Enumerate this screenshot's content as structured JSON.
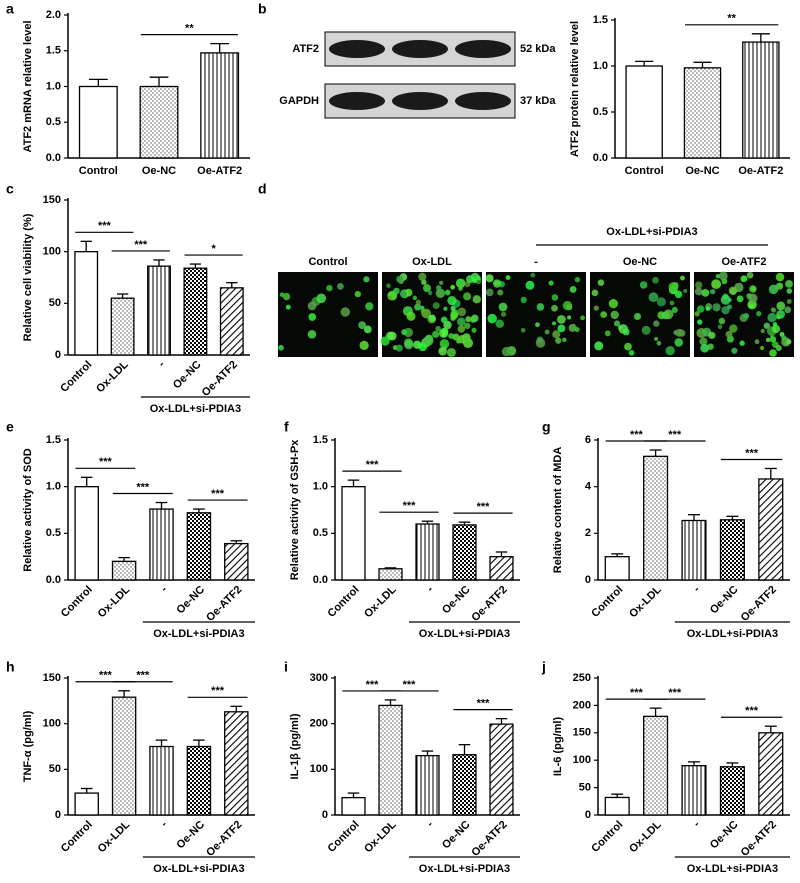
{
  "chart_data": [
    {
      "type": "bar",
      "label": "a",
      "ylabel": "ATF2 mRNA relative level",
      "categories": [
        "Control",
        "Oe-NC",
        "Oe-ATF2"
      ],
      "values": [
        1.0,
        1.0,
        1.47
      ],
      "errors": [
        0.1,
        0.13,
        0.13
      ],
      "patterns": [
        "none",
        "dots",
        "vertical"
      ],
      "ylim": [
        0,
        2.0
      ],
      "yticks": [
        {
          "value": 0,
          "label": "0.0"
        },
        {
          "value": 0.5,
          "label": "0.5"
        },
        {
          "value": 1.0,
          "label": "1.0"
        },
        {
          "value": 1.5,
          "label": "1.5"
        },
        {
          "value": 2.0,
          "label": "2.0"
        }
      ],
      "annotations": [
        {
          "between": [
            "Oe-NC",
            "Oe-ATF2"
          ],
          "label": "**"
        }
      ]
    },
    {
      "type": "bar",
      "label": "b",
      "blot": {
        "bands": [
          "ATF2",
          "GAPDH"
        ],
        "sizes": [
          "52 kDa",
          "37 kDa"
        ]
      },
      "ylabel": "ATF2 protein relative level",
      "categories": [
        "Control",
        "Oe-NC",
        "Oe-ATF2"
      ],
      "values": [
        1.0,
        0.98,
        1.26
      ],
      "errors": [
        0.05,
        0.06,
        0.09
      ],
      "patterns": [
        "none",
        "dots",
        "vertical"
      ],
      "ylim": [
        0,
        1.5
      ],
      "yticks": [
        {
          "value": 0,
          "label": "0.0"
        },
        {
          "value": 0.5,
          "label": "0.5"
        },
        {
          "value": 1.0,
          "label": "1.0"
        },
        {
          "value": 1.5,
          "label": "1.5"
        }
      ],
      "annotations": [
        {
          "between": [
            "Oe-NC",
            "Oe-ATF2"
          ],
          "label": "**"
        }
      ]
    },
    {
      "type": "bar",
      "label": "c",
      "ylabel": "Relative cell viability (%)",
      "categories": [
        "Control",
        "Ox-LDL",
        "-",
        "Oe-NC",
        "Oe-ATF2"
      ],
      "group_label": "Ox-LDL+si-PDIA3",
      "values": [
        100,
        55,
        86,
        84,
        65
      ],
      "errors": [
        10,
        4,
        6,
        4,
        5
      ],
      "patterns": [
        "none",
        "dots",
        "vertical",
        "checker",
        "diagonal"
      ],
      "ylim": [
        0,
        150
      ],
      "yticks": [
        0,
        50,
        100,
        150
      ],
      "annotations": [
        {
          "between": [
            "Control",
            "Ox-LDL"
          ],
          "label": "***"
        },
        {
          "between": [
            "Ox-LDL",
            "-"
          ],
          "label": "***"
        },
        {
          "between": [
            "Oe-NC",
            "Oe-ATF2"
          ],
          "label": "*"
        }
      ]
    },
    {
      "type": "image",
      "label": "d",
      "columns": [
        "Control",
        "Ox-LDL",
        "-",
        "Oe-NC",
        "Oe-ATF2"
      ],
      "group_label": "Ox-LDL+si-PDIA3"
    },
    {
      "type": "bar",
      "label": "e",
      "ylabel": "Relative activity of SOD",
      "categories": [
        "Control",
        "Ox-LDL",
        "-",
        "Oe-NC",
        "Oe-ATF2"
      ],
      "group_label": "Ox-LDL+si-PDIA3",
      "values": [
        1.0,
        0.2,
        0.76,
        0.72,
        0.39
      ],
      "errors": [
        0.1,
        0.04,
        0.07,
        0.04,
        0.03
      ],
      "patterns": [
        "none",
        "dots",
        "vertical",
        "checker",
        "diagonal"
      ],
      "ylim": [
        0,
        1.5
      ],
      "yticks": [
        {
          "value": 0,
          "label": "0.0"
        },
        {
          "value": 0.5,
          "label": "0.5"
        },
        {
          "value": 1.0,
          "label": "1.0"
        },
        {
          "value": 1.5,
          "label": "1.5"
        }
      ],
      "annotations": [
        {
          "between": [
            "Control",
            "Ox-LDL"
          ],
          "label": "***"
        },
        {
          "between": [
            "Ox-LDL",
            "-"
          ],
          "label": "***"
        },
        {
          "between": [
            "Oe-NC",
            "Oe-ATF2"
          ],
          "label": "***"
        }
      ]
    },
    {
      "type": "bar",
      "label": "f",
      "ylabel": "Relative activity of GSH-Px",
      "categories": [
        "Control",
        "Ox-LDL",
        "-",
        "Oe-NC",
        "Oe-ATF2"
      ],
      "group_label": "Ox-LDL+si-PDIA3",
      "values": [
        1.0,
        0.12,
        0.6,
        0.59,
        0.25
      ],
      "errors": [
        0.07,
        0.01,
        0.03,
        0.03,
        0.05
      ],
      "patterns": [
        "none",
        "dots",
        "vertical",
        "checker",
        "diagonal"
      ],
      "ylim": [
        0,
        1.5
      ],
      "yticks": [
        {
          "value": 0,
          "label": "0.0"
        },
        {
          "value": 0.5,
          "label": "0.5"
        },
        {
          "value": 1.0,
          "label": "1.0"
        },
        {
          "value": 1.5,
          "label": "1.5"
        }
      ],
      "annotations": [
        {
          "between": [
            "Control",
            "Ox-LDL"
          ],
          "label": "***"
        },
        {
          "between": [
            "Ox-LDL",
            "-"
          ],
          "label": "***"
        },
        {
          "between": [
            "Oe-NC",
            "Oe-ATF2"
          ],
          "label": "***"
        }
      ]
    },
    {
      "type": "bar",
      "label": "g",
      "ylabel": "Relative content of MDA",
      "categories": [
        "Control",
        "Ox-LDL",
        "-",
        "Oe-NC",
        "Oe-ATF2"
      ],
      "group_label": "Ox-LDL+si-PDIA3",
      "values": [
        1.0,
        5.3,
        2.55,
        2.58,
        4.33
      ],
      "errors": [
        0.12,
        0.27,
        0.25,
        0.15,
        0.45
      ],
      "patterns": [
        "none",
        "dots",
        "vertical",
        "checker",
        "diagonal"
      ],
      "ylim": [
        0,
        6
      ],
      "yticks": [
        0,
        2,
        4,
        6
      ],
      "annotations": [
        {
          "between": [
            "Control",
            "Ox-LDL"
          ],
          "label": "***"
        },
        {
          "between": [
            "Ox-LDL",
            "-"
          ],
          "label": "***"
        },
        {
          "between": [
            "Oe-NC",
            "Oe-ATF2"
          ],
          "label": "***"
        }
      ]
    },
    {
      "type": "bar",
      "label": "h",
      "ylabel": "TNF-α (pg/ml)",
      "categories": [
        "Control",
        "Ox-LDL",
        "-",
        "Oe-NC",
        "Oe-ATF2"
      ],
      "group_label": "Ox-LDL+si-PDIA3",
      "values": [
        24,
        129,
        75,
        75,
        113
      ],
      "errors": [
        5,
        7,
        7,
        7,
        6
      ],
      "patterns": [
        "none",
        "dots",
        "vertical",
        "checker",
        "diagonal"
      ],
      "ylim": [
        0,
        150
      ],
      "yticks": [
        0,
        50,
        100,
        150
      ],
      "annotations": [
        {
          "between": [
            "Control",
            "Ox-LDL"
          ],
          "label": "***"
        },
        {
          "between": [
            "Ox-LDL",
            "-"
          ],
          "label": "***"
        },
        {
          "between": [
            "Oe-NC",
            "Oe-ATF2"
          ],
          "label": "***"
        }
      ]
    },
    {
      "type": "bar",
      "label": "i",
      "ylabel": "IL-1β (pg/ml)",
      "categories": [
        "Control",
        "Ox-LDL",
        "-",
        "Oe-NC",
        "Oe-ATF2"
      ],
      "group_label": "Ox-LDL+si-PDIA3",
      "values": [
        38,
        240,
        130,
        132,
        199
      ],
      "errors": [
        10,
        12,
        10,
        22,
        12
      ],
      "patterns": [
        "none",
        "dots",
        "vertical",
        "checker",
        "diagonal"
      ],
      "ylim": [
        0,
        300
      ],
      "yticks": [
        0,
        100,
        200,
        300
      ],
      "annotations": [
        {
          "between": [
            "Control",
            "Ox-LDL"
          ],
          "label": "***"
        },
        {
          "between": [
            "Ox-LDL",
            "-"
          ],
          "label": "***"
        },
        {
          "between": [
            "Oe-NC",
            "Oe-ATF2"
          ],
          "label": "***"
        }
      ]
    },
    {
      "type": "bar",
      "label": "j",
      "ylabel": "IL-6 (pg/ml)",
      "categories": [
        "Control",
        "Ox-LDL",
        "-",
        "Oe-NC",
        "Oe-ATF2"
      ],
      "group_label": "Ox-LDL+si-PDIA3",
      "values": [
        32,
        180,
        90,
        88,
        150
      ],
      "errors": [
        6,
        15,
        7,
        7,
        12
      ],
      "patterns": [
        "none",
        "dots",
        "vertical",
        "checker",
        "diagonal"
      ],
      "ylim": [
        0,
        250
      ],
      "yticks": [
        0,
        50,
        100,
        150,
        200,
        250
      ],
      "annotations": [
        {
          "between": [
            "Control",
            "Ox-LDL"
          ],
          "label": "***"
        },
        {
          "between": [
            "Ox-LDL",
            "-"
          ],
          "label": "***"
        },
        {
          "between": [
            "Oe-NC",
            "Oe-ATF2"
          ],
          "label": "***"
        }
      ]
    }
  ]
}
